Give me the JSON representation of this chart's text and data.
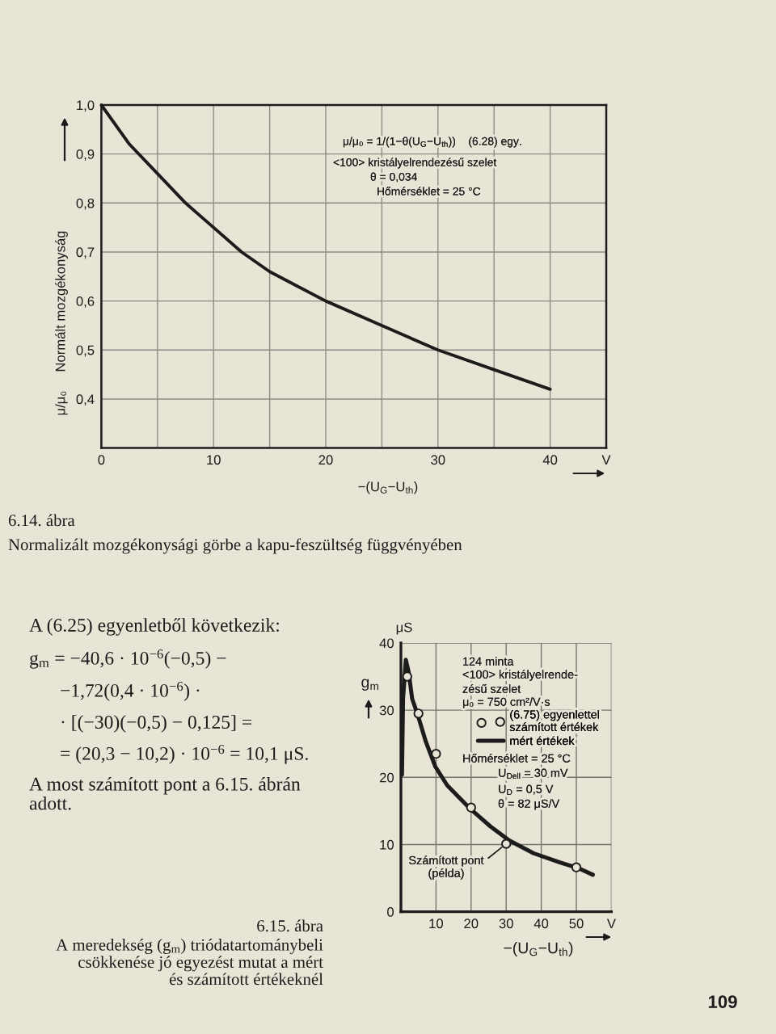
{
  "chart_data": [
    {
      "type": "line",
      "title": "6.14. ábra",
      "subtitle": "Normalizált mozgékonysági görbe a kapu-feszültség függvényében",
      "xlabel": "−(U$_{G}$−U$_{th}$)",
      "ylabel": "μ/μ₀     Normált mozgékonyság",
      "x": [
        0,
        2.5,
        5,
        7.5,
        10,
        12.5,
        15,
        17.5,
        20,
        25,
        30,
        35,
        40
      ],
      "series": [
        {
          "color": "#1c1c1c",
          "values": [
            1.0,
            0.92,
            0.86,
            0.8,
            0.75,
            0.7,
            0.66,
            0.63,
            0.6,
            0.55,
            0.5,
            0.46,
            0.42
          ]
        }
      ],
      "xlim": [
        0,
        45
      ],
      "xticks": [
        0,
        {
          "value": 5,
          "label": null
        },
        10,
        {
          "value": 15,
          "label": null
        },
        20,
        {
          "value": 25,
          "label": null
        },
        30,
        {
          "value": 35,
          "label": null
        },
        40,
        {
          "value": 45,
          "label": "V"
        }
      ],
      "ylim": [
        0.3,
        1.0
      ],
      "yticks": [
        {
          "value": 0.4,
          "label": "0,4"
        },
        {
          "value": 0.5,
          "label": "0,5"
        },
        {
          "value": 0.6,
          "label": "0,6"
        },
        {
          "value": 0.7,
          "label": "0,7"
        },
        {
          "value": 0.8,
          "label": "0,8"
        },
        {
          "value": 0.9,
          "label": "0,9"
        },
        {
          "value": 1.0,
          "label": "1,0"
        }
      ],
      "grid": true,
      "annotations": [
        "μ/μ₀ = 1/(1−θ(U$_{G}$−U$_{th}$))    (6.28) egy.",
        "<100> kristályelrendezésű szelet",
        "θ = 0,034",
        "Hőmérséklet = 25 °C"
      ]
    },
    {
      "type": "line",
      "title": "6.15. ábra",
      "subtitle": "A meredekség (g$_{m}$) triódatartománybeli\ncsökkenése jó egyezést mutat a mért\nés számított értékeknél",
      "xlabel": "−(U$_{G}$−U$_{th}$)",
      "ylabel": "g$_{m}$",
      "series": [
        {
          "name": "(6.75) egyenlettel\nszámított értékek",
          "type": "scatter",
          "marker": "circle",
          "color": "#1c1c1c",
          "x": [
            1.8,
            5,
            10,
            20,
            30,
            50
          ],
          "values": [
            35,
            29.5,
            23.5,
            15.5,
            10.1,
            6.6
          ]
        },
        {
          "name": "mért értékek",
          "type": "line",
          "color": "#1c1c1c",
          "x": [
            0.3,
            0.6,
            1.4,
            2.2,
            3.2,
            4.8,
            7.1,
            9.8,
            13.2,
            19.8,
            25.5,
            30.9,
            37.8,
            45.5,
            50.5,
            54.7
          ],
          "values": [
            20.4,
            31.7,
            37.5,
            35.7,
            31.7,
            29.3,
            25.3,
            21.6,
            18.8,
            15.3,
            12.7,
            10.6,
            8.7,
            7.3,
            6.5,
            5.5
          ]
        }
      ],
      "xlim": [
        0,
        60
      ],
      "xticks": [
        10,
        20,
        30,
        40,
        50,
        {
          "value": 60,
          "label": "V"
        }
      ],
      "ylim": [
        0,
        40
      ],
      "yticks": [
        0,
        10,
        20,
        30,
        40
      ],
      "grid": true,
      "legend": "top right",
      "annotations": [
        "A (6.25) egyenletből következik:",
        "g$_{m}$ = −40,6 · 10$^{−6}$(−0,5) −",
        "−1,72(0,4 · 10$^{−6}$) ·",
        "· [(−30)(−0,5) − 0,125] =",
        "= (20,3 − 10,2) · 10$^{−6}$ = 10,1 μS.",
        "A most számított pont a 6.15. ábrán\nadott.",
        "μS",
        "124 minta",
        "<100> kristályelrende-",
        "zésű szelet",
        "μ₀ = 750 cm²/V·s",
        "Hőmérséklet = 25 °C",
        "U$_{Dell}$ = 30 mV",
        "U$_{D}$ = 0,5 V",
        "θ = 82 μS/V",
        {
          "text": "Számított pont\n(példa)",
          "x": 30,
          "y": 10.1
        },
        "109"
      ]
    }
  ]
}
